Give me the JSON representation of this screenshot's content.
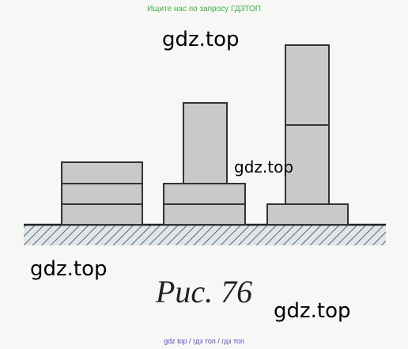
{
  "header": {
    "text": "Ищите нас по запросу ГДЗТОП"
  },
  "watermarks": [
    "gdz.top",
    "gdz.top",
    "gdz.top",
    "gdz.top"
  ],
  "figure": {
    "caption": "Рис. 76"
  },
  "footer": {
    "text": "gdz top / гдз топ / гдз топ"
  }
}
